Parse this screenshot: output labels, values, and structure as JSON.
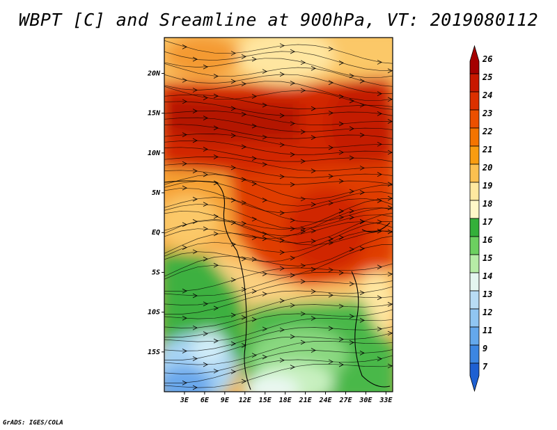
{
  "title": "WBPT [C] and Sreamline at 900hPa, VT: 2019080112",
  "credit": "GrADS: IGES/COLA",
  "map": {
    "lat_labels": [
      "20N",
      "15N",
      "10N",
      "5N",
      "EQ",
      "5S",
      "10S",
      "15S"
    ],
    "lat_values": [
      20,
      15,
      10,
      5,
      0,
      -5,
      -10,
      -15
    ],
    "lon_labels": [
      "3E",
      "6E",
      "9E",
      "12E",
      "15E",
      "18E",
      "21E",
      "24E",
      "27E",
      "30E",
      "33E"
    ],
    "lon_values": [
      3,
      6,
      9,
      12,
      15,
      18,
      21,
      24,
      27,
      30,
      33
    ],
    "lon_range": [
      0,
      34
    ],
    "lat_range": [
      -20,
      24.5
    ]
  },
  "colorbar": {
    "labels": [
      "26",
      "25",
      "24",
      "23",
      "22",
      "21",
      "20",
      "19",
      "18",
      "17",
      "16",
      "15",
      "14",
      "13",
      "12",
      "11",
      "9",
      "7"
    ],
    "colors": [
      "#a50000",
      "#c81800",
      "#dc3000",
      "#ec5000",
      "#f47400",
      "#f89c10",
      "#fbc050",
      "#ffe9a0",
      "#fff8c8",
      "#34b03a",
      "#6cd060",
      "#b6eca6",
      "#e4f6f0",
      "#b8dcf4",
      "#90c6f2",
      "#64a8ec",
      "#3c86e2",
      "#1e60d2"
    ]
  }
}
